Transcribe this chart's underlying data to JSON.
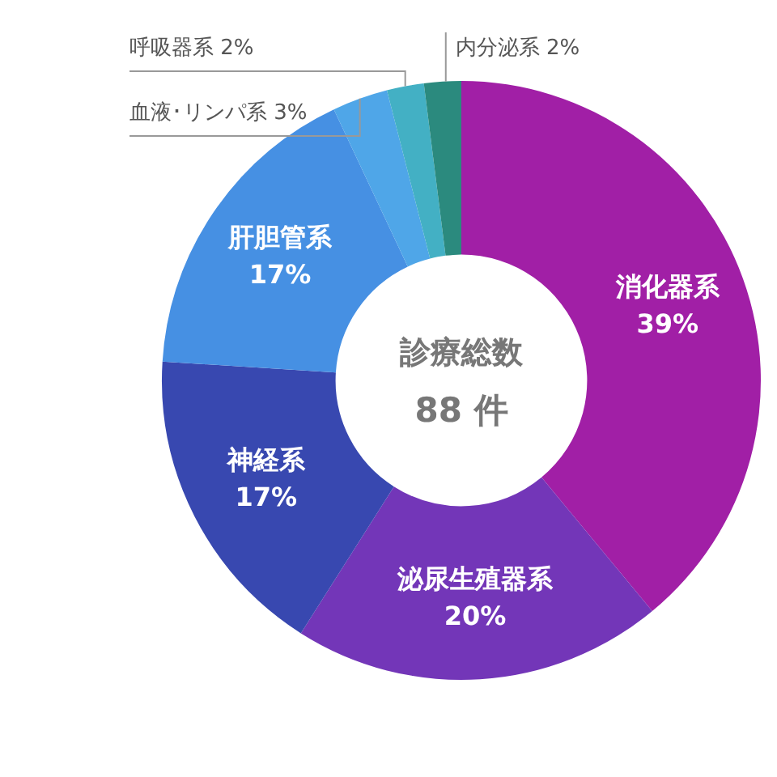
{
  "chart_data": {
    "type": "donut",
    "categories": [
      "消化器系",
      "泌尿生殖器系",
      "神経系",
      "肝胆管系",
      "血液･リンパ系",
      "呼吸器系",
      "内分泌系"
    ],
    "values": [
      39,
      20,
      17,
      17,
      3,
      2,
      2
    ],
    "colors": [
      "#a11fa6",
      "#7336b8",
      "#3848b0",
      "#4690e3",
      "#4fa6e8",
      "#43b0c4",
      "#2b8a7e"
    ],
    "value_labels": [
      "39%",
      "20%",
      "17%",
      "17%",
      "3%",
      "2%",
      "2%"
    ],
    "annotations": [
      "診療総数",
      "88 件"
    ]
  }
}
